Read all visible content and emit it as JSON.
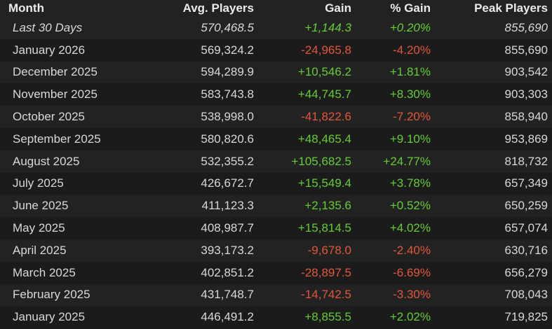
{
  "table": {
    "headers": [
      "Month",
      "Avg. Players",
      "Gain",
      "% Gain",
      "Peak Players"
    ],
    "rows": [
      [
        "Last 30 Days",
        "570,468.5",
        "+1,144.3",
        "+0.20%",
        "855,690"
      ],
      [
        "January 2026",
        "569,324.2",
        "-24,965.8",
        "-4.20%",
        "855,690"
      ],
      [
        "December 2025",
        "594,289.9",
        "+10,546.2",
        "+1.81%",
        "903,542"
      ],
      [
        "November 2025",
        "583,743.8",
        "+44,745.7",
        "+8.30%",
        "903,303"
      ],
      [
        "October 2025",
        "538,998.0",
        "-41,822.6",
        "-7.20%",
        "858,940"
      ],
      [
        "September 2025",
        "580,820.6",
        "+48,465.4",
        "+9.10%",
        "953,869"
      ],
      [
        "August 2025",
        "532,355.2",
        "+105,682.5",
        "+24.77%",
        "818,732"
      ],
      [
        "July 2025",
        "426,672.7",
        "+15,549.4",
        "+3.78%",
        "657,349"
      ],
      [
        "June 2025",
        "411,123.3",
        "+2,135.6",
        "+0.52%",
        "650,259"
      ],
      [
        "May 2025",
        "408,987.7",
        "+15,814.5",
        "+4.02%",
        "657,074"
      ],
      [
        "April 2025",
        "393,173.2",
        "-9,678.0",
        "-2.40%",
        "630,716"
      ],
      [
        "March 2025",
        "402,851.2",
        "-28,897.5",
        "-6.69%",
        "656,279"
      ],
      [
        "February 2025",
        "431,748.7",
        "-14,742.5",
        "-3.30%",
        "708,043"
      ],
      [
        "January 2025",
        "446,491.2",
        "+8,855.5",
        "+2.02%",
        "719,825"
      ]
    ]
  }
}
